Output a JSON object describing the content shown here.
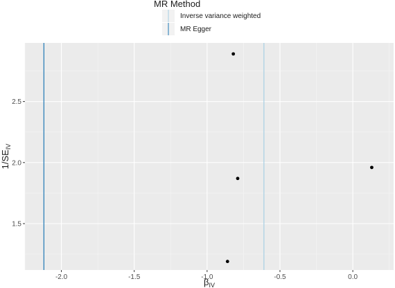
{
  "legend": {
    "title": "MR Method",
    "items": [
      {
        "label": "Inverse variance weighted",
        "color": "#a6cee3"
      },
      {
        "label": "MR Egger",
        "color": "#1f78b4"
      }
    ]
  },
  "axes": {
    "x_label_main": "β",
    "x_label_sub": "IV",
    "y_label_main": "1/SE",
    "y_label_sub": "IV"
  },
  "chart_data": {
    "type": "scatter",
    "title": "",
    "xlabel": "βIV",
    "ylabel": "1/SEIV",
    "xlim": [
      -2.25,
      0.28
    ],
    "ylim": [
      1.12,
      2.98
    ],
    "x_ticks": [
      -2.0,
      -1.5,
      -1.0,
      -0.5,
      0.0
    ],
    "x_tick_labels": [
      "-2.0",
      "-1.5",
      "-1.0",
      "-0.5",
      "0.0"
    ],
    "y_ticks": [
      1.5,
      2.0,
      2.5
    ],
    "y_tick_labels": [
      "1.5",
      "2.0",
      "2.5"
    ],
    "points": [
      {
        "x": -0.82,
        "y": 2.89
      },
      {
        "x": -0.79,
        "y": 1.87
      },
      {
        "x": -0.86,
        "y": 1.19
      },
      {
        "x": 0.13,
        "y": 1.96
      }
    ],
    "vlines": [
      {
        "method": "Inverse variance weighted",
        "x": -0.61,
        "color": "#a6cee3"
      },
      {
        "method": "MR Egger",
        "x": -2.12,
        "color": "#1f78b4"
      }
    ],
    "grid": true,
    "legend_position": "top"
  }
}
